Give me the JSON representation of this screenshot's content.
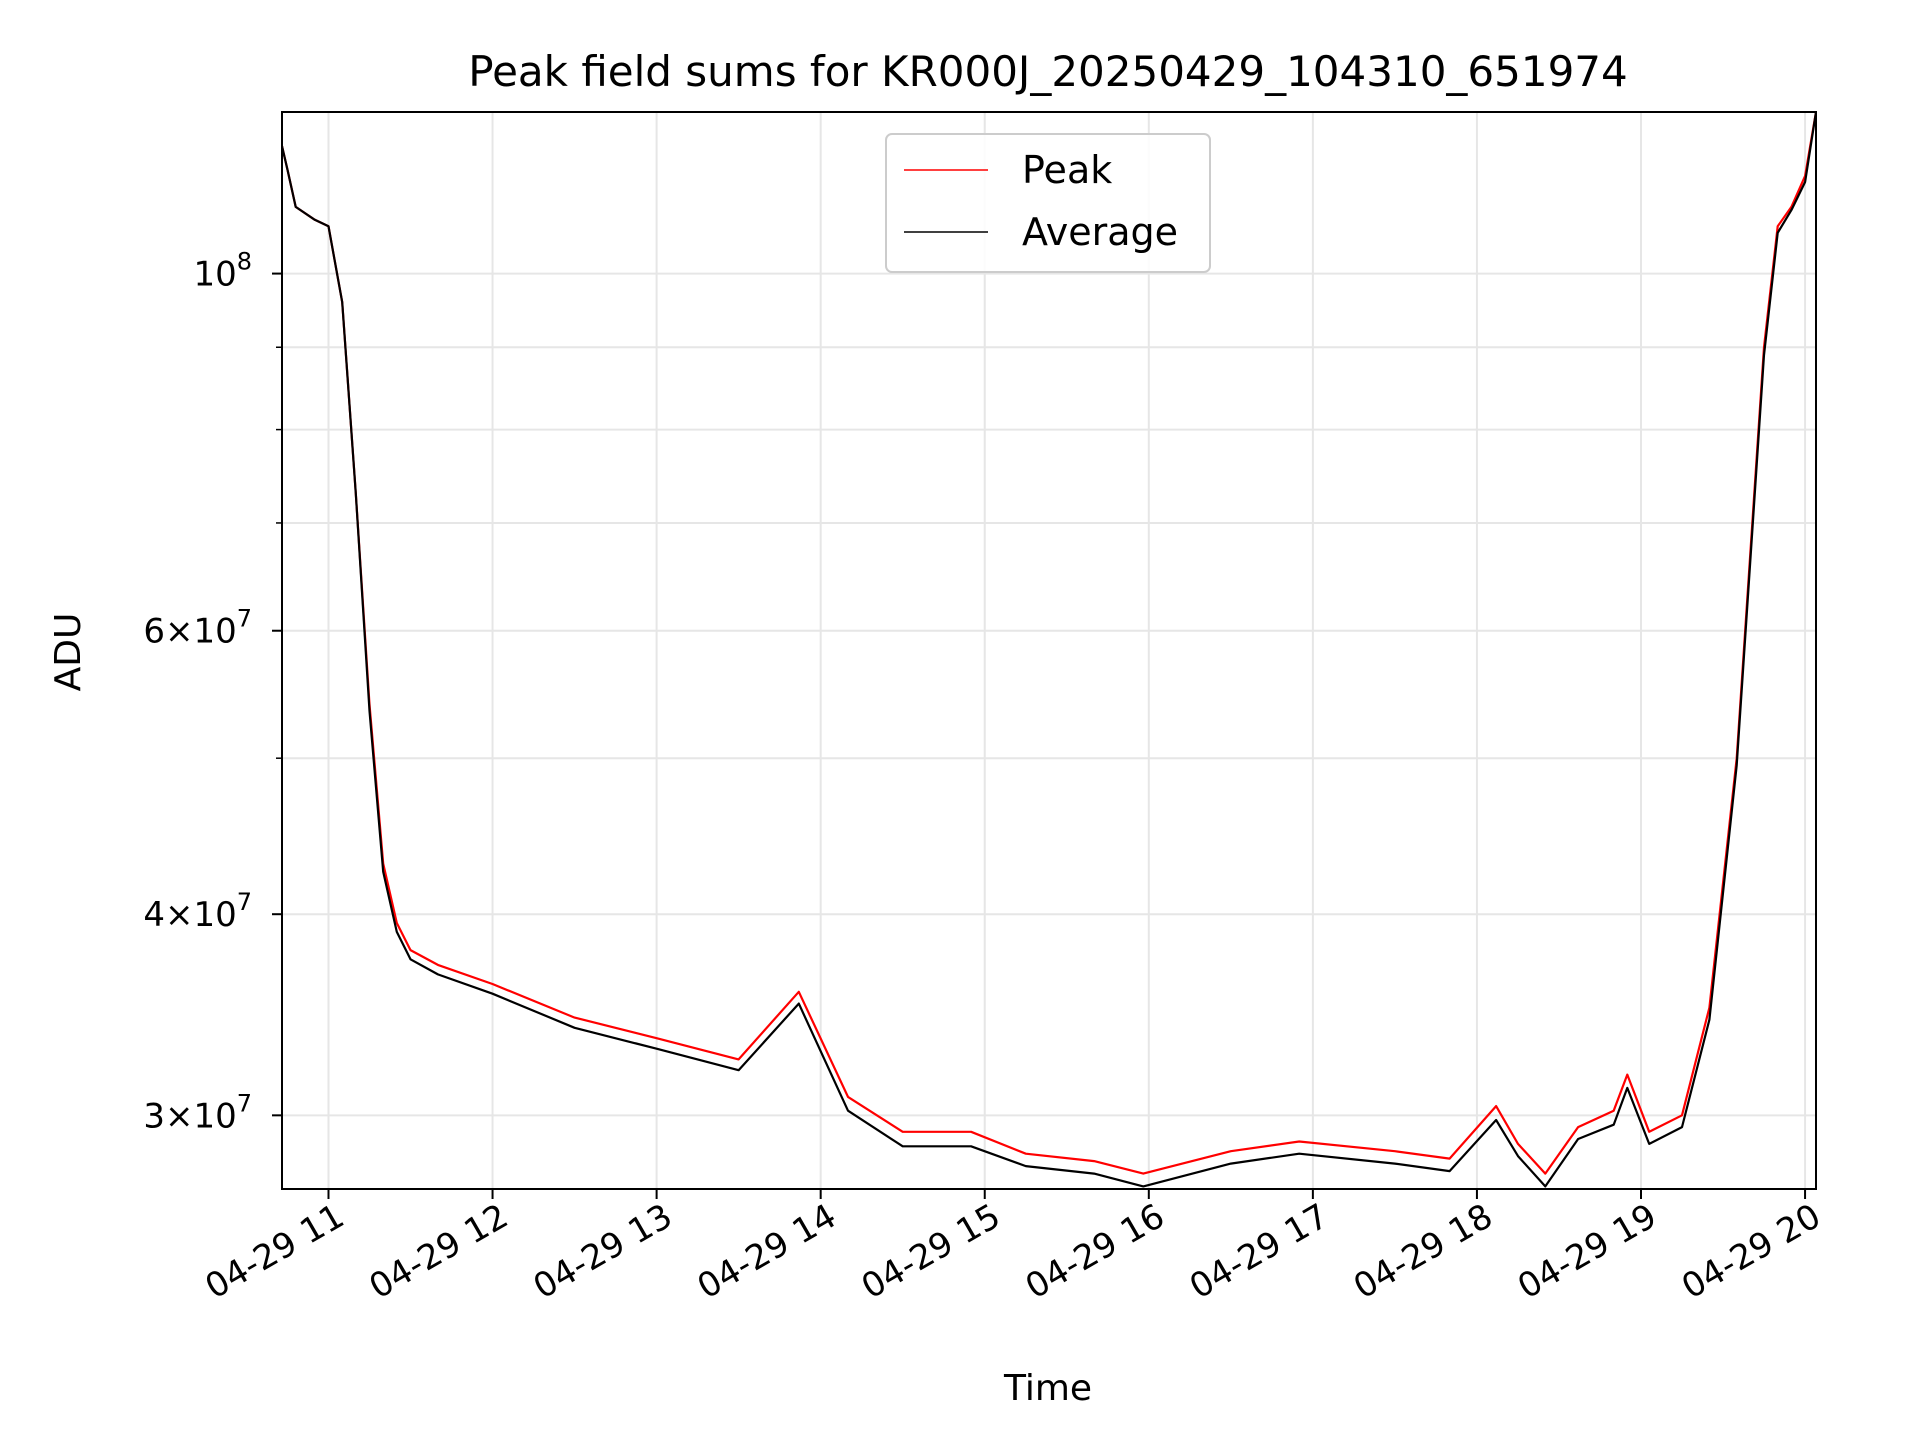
{
  "chart_data": {
    "type": "line",
    "title": "Peak field sums for KR000J_20250429_104310_651974",
    "xlabel": "Time",
    "ylabel": "ADU",
    "yscale": "log",
    "grid": true,
    "legend_position": "top-center",
    "xlim": [
      "2025-04-29 10:43",
      "2025-04-29 20:04"
    ],
    "ylim": [
      27000000,
      126000000
    ],
    "x_ticks": [
      {
        "x": "2025-04-29 11:00",
        "label": "04-29 11"
      },
      {
        "x": "2025-04-29 12:00",
        "label": "04-29 12"
      },
      {
        "x": "2025-04-29 13:00",
        "label": "04-29 13"
      },
      {
        "x": "2025-04-29 14:00",
        "label": "04-29 14"
      },
      {
        "x": "2025-04-29 15:00",
        "label": "04-29 15"
      },
      {
        "x": "2025-04-29 16:00",
        "label": "04-29 16"
      },
      {
        "x": "2025-04-29 17:00",
        "label": "04-29 17"
      },
      {
        "x": "2025-04-29 18:00",
        "label": "04-29 18"
      },
      {
        "x": "2025-04-29 19:00",
        "label": "04-29 19"
      },
      {
        "x": "2025-04-29 20:00",
        "label": "04-29 20"
      }
    ],
    "y_ticks_major": [
      {
        "y": 30000000,
        "mantissa": "3",
        "exponent": "7"
      },
      {
        "y": 40000000,
        "mantissa": "4",
        "exponent": "7"
      },
      {
        "y": 60000000,
        "mantissa": "6",
        "exponent": "7"
      },
      {
        "y": 100000000,
        "mantissa": "",
        "exponent": "8"
      }
    ],
    "y_ticks_minor": [
      50000000,
      70000000,
      80000000,
      90000000
    ],
    "series": [
      {
        "name": "Peak",
        "color": "#ff0000",
        "x": [
          "2025-04-29 10:43",
          "2025-04-29 10:45",
          "2025-04-29 10:48",
          "2025-04-29 10:55",
          "2025-04-29 11:00",
          "2025-04-29 11:05",
          "2025-04-29 11:10",
          "2025-04-29 11:15",
          "2025-04-29 11:20",
          "2025-04-29 11:25",
          "2025-04-29 11:30",
          "2025-04-29 11:40",
          "2025-04-29 12:00",
          "2025-04-29 12:30",
          "2025-04-29 13:00",
          "2025-04-29 13:30",
          "2025-04-29 13:52",
          "2025-04-29 14:10",
          "2025-04-29 14:30",
          "2025-04-29 14:55",
          "2025-04-29 15:15",
          "2025-04-29 15:40",
          "2025-04-29 15:58",
          "2025-04-29 16:30",
          "2025-04-29 16:55",
          "2025-04-29 17:30",
          "2025-04-29 17:50",
          "2025-04-29 18:07",
          "2025-04-29 18:15",
          "2025-04-29 18:25",
          "2025-04-29 18:37",
          "2025-04-29 18:50",
          "2025-04-29 18:55",
          "2025-04-29 19:03",
          "2025-04-29 19:15",
          "2025-04-29 19:25",
          "2025-04-29 19:35",
          "2025-04-29 19:45",
          "2025-04-29 19:50",
          "2025-04-29 19:55",
          "2025-04-29 20:00",
          "2025-04-29 20:04"
        ],
        "values": [
          120000000,
          116000000,
          110000000,
          108000000,
          107000000,
          96000000,
          73000000,
          54000000,
          43000000,
          39500000,
          38000000,
          37200000,
          36200000,
          34500000,
          33500000,
          32500000,
          35800000,
          30800000,
          29300000,
          29300000,
          28400000,
          28100000,
          27600000,
          28500000,
          28900000,
          28500000,
          28200000,
          30400000,
          28800000,
          27600000,
          29500000,
          30200000,
          31800000,
          29300000,
          30000000,
          35000000,
          50000000,
          90000000,
          107000000,
          110000000,
          115000000,
          126000000
        ]
      },
      {
        "name": "Average",
        "color": "#000000",
        "x": [
          "2025-04-29 10:43",
          "2025-04-29 10:45",
          "2025-04-29 10:48",
          "2025-04-29 10:55",
          "2025-04-29 11:00",
          "2025-04-29 11:05",
          "2025-04-29 11:10",
          "2025-04-29 11:15",
          "2025-04-29 11:20",
          "2025-04-29 11:25",
          "2025-04-29 11:30",
          "2025-04-29 11:40",
          "2025-04-29 12:00",
          "2025-04-29 12:30",
          "2025-04-29 13:00",
          "2025-04-29 13:30",
          "2025-04-29 13:52",
          "2025-04-29 14:10",
          "2025-04-29 14:30",
          "2025-04-29 14:55",
          "2025-04-29 15:15",
          "2025-04-29 15:40",
          "2025-04-29 15:58",
          "2025-04-29 16:30",
          "2025-04-29 16:55",
          "2025-04-29 17:30",
          "2025-04-29 17:50",
          "2025-04-29 18:07",
          "2025-04-29 18:15",
          "2025-04-29 18:25",
          "2025-04-29 18:37",
          "2025-04-29 18:50",
          "2025-04-29 18:55",
          "2025-04-29 19:03",
          "2025-04-29 19:15",
          "2025-04-29 19:25",
          "2025-04-29 19:35",
          "2025-04-29 19:45",
          "2025-04-29 19:50",
          "2025-04-29 19:55",
          "2025-04-29 20:00",
          "2025-04-29 20:04"
        ],
        "values": [
          120000000,
          116000000,
          110000000,
          108000000,
          107000000,
          96000000,
          73000000,
          53500000,
          42500000,
          39000000,
          37500000,
          36700000,
          35700000,
          34000000,
          33000000,
          32000000,
          35200000,
          30200000,
          28700000,
          28700000,
          27900000,
          27600000,
          27100000,
          28000000,
          28400000,
          28000000,
          27700000,
          29800000,
          28300000,
          27100000,
          29000000,
          29600000,
          31200000,
          28800000,
          29500000,
          34400000,
          49500000,
          89000000,
          106000000,
          109500000,
          114000000,
          126000000
        ]
      }
    ]
  }
}
